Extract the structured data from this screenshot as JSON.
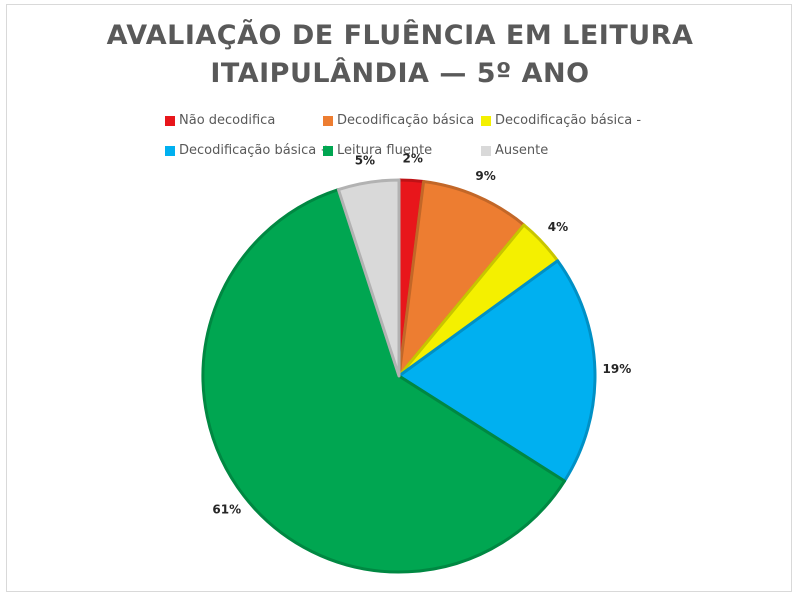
{
  "chart_data": {
    "type": "pie",
    "title_line1": "AVALIAÇÃO DE FLUÊNCIA EM LEITURA",
    "title_line2": "ITAIPULÂNDIA — 5º ANO",
    "categories": [
      "Não decodifica",
      "Decodificação básica",
      "Decodificação básica -",
      "Decodificação básica +",
      "Leitura fluente",
      "Ausente"
    ],
    "values": [
      2,
      9,
      4,
      19,
      61,
      5
    ],
    "value_labels": [
      "2%",
      "9%",
      "4%",
      "19%",
      "61%",
      "5%"
    ],
    "colors": [
      "#e8161b",
      "#ed7d31",
      "#f4f000",
      "#00b0f0",
      "#00a651",
      "#d9d9d9"
    ],
    "legend_position": "top"
  }
}
